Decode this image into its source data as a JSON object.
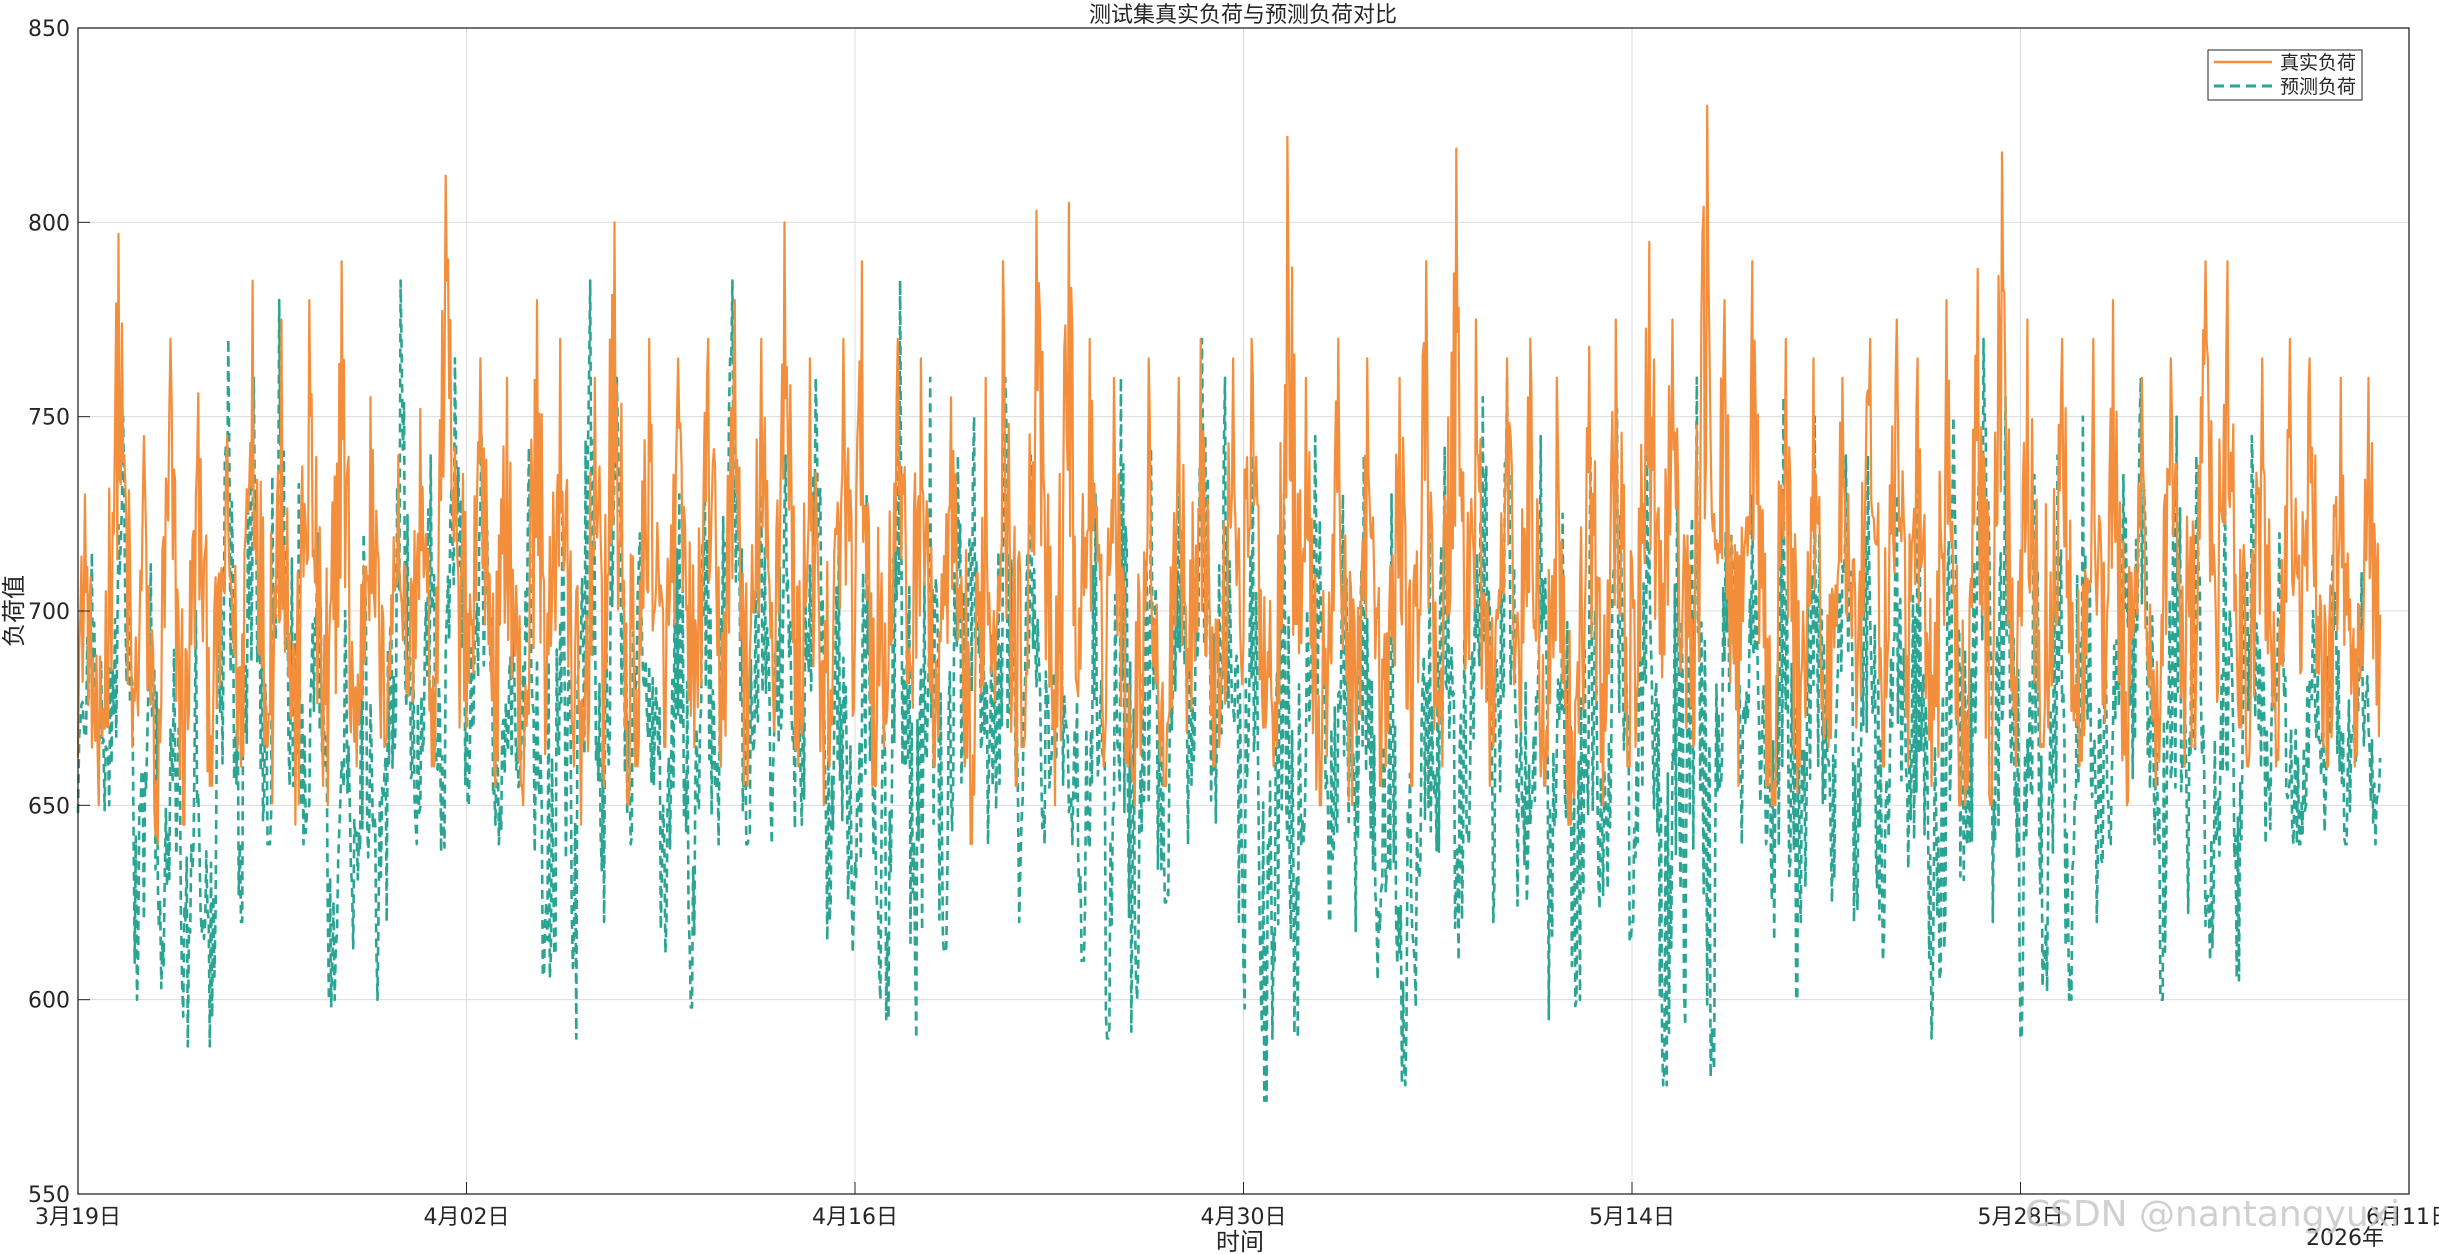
{
  "chart_data": {
    "type": "line",
    "title": "测试集真实负荷与预测负荷对比",
    "xlabel": "时间",
    "ylabel": "负荷值",
    "x_year_label": "2026年",
    "x_range": [
      "2026-03-19",
      "2026-06-11"
    ],
    "ylim": [
      550,
      850
    ],
    "y_ticks": [
      550,
      600,
      650,
      700,
      750,
      800,
      850
    ],
    "x_ticks": [
      {
        "date": "2026-03-19",
        "label": "3月19日"
      },
      {
        "date": "2026-04-02",
        "label": "4月02日"
      },
      {
        "date": "2026-04-16",
        "label": "4月16日"
      },
      {
        "date": "2026-04-30",
        "label": "4月30日"
      },
      {
        "date": "2026-05-14",
        "label": "5月14日"
      },
      {
        "date": "2026-05-28",
        "label": "5月28日"
      },
      {
        "date": "2026-06-11",
        "label": "6月11日"
      }
    ],
    "grid": true,
    "legend_position": "top-right",
    "data_start": "2026-03-19",
    "data_end": "2026-06-10",
    "series": [
      {
        "name": "真实负荷",
        "color": "#F28E3C",
        "style": "solid",
        "daily_min": [
          650,
          665,
          640,
          645,
          655,
          660,
          665,
          645,
          655,
          650,
          660,
          665,
          660,
          670,
          670,
          655,
          650,
          660,
          645,
          650,
          660,
          665,
          665,
          660,
          655,
          660,
          650,
          660,
          655,
          665,
          660,
          660,
          640,
          655,
          665,
          650,
          660,
          660,
          650,
          655,
          660,
          665,
          670,
          660,
          650,
          650,
          655,
          660,
          655,
          660,
          655,
          665,
          655,
          645,
          650,
          660,
          665,
          670,
          665,
          655,
          655,
          650,
          660,
          665,
          670,
          660,
          655,
          650,
          650,
          660,
          665,
          670,
          660,
          650,
          655,
          660,
          665,
          670,
          660,
          660,
          665,
          660,
          660
        ],
        "daily_max": [
          730,
          797,
          745,
          770,
          756,
          745,
          785,
          775,
          780,
          790,
          755,
          740,
          752,
          812,
          765,
          760,
          780,
          770,
          760,
          800,
          770,
          765,
          770,
          780,
          770,
          800,
          765,
          770,
          790,
          770,
          765,
          755,
          760,
          790,
          803,
          805,
          770,
          760,
          765,
          760,
          770,
          765,
          770,
          822,
          760,
          770,
          765,
          760,
          790,
          819,
          775,
          765,
          770,
          760,
          768,
          775,
          795,
          775,
          830,
          780,
          790,
          770,
          765,
          760,
          770,
          775,
          765,
          780,
          788,
          818,
          775,
          770,
          770,
          780,
          760,
          765,
          790,
          790,
          765,
          770,
          765,
          760,
          760
        ]
      },
      {
        "name": "预测负荷",
        "color": "#2AA594",
        "style": "dashed",
        "daily_min": [
          648,
          650,
          600,
          588,
          588,
          620,
          640,
          655,
          640,
          598,
          600,
          620,
          640,
          638,
          650,
          640,
          606,
          590,
          620,
          640,
          655,
          612,
          598,
          640,
          640,
          640,
          645,
          612,
          600,
          595,
          590,
          612,
          640,
          620,
          640,
          640,
          610,
          590,
          600,
          625,
          640,
          620,
          574,
          590,
          640,
          620,
          605,
          578,
          598,
          610,
          640,
          620,
          625,
          595,
          600,
          615,
          620,
          578,
          580,
          640,
          640,
          600,
          620,
          625,
          620,
          610,
          590,
          605,
          640,
          620,
          590,
          600,
          620,
          640,
          640,
          600,
          610,
          605,
          640,
          640,
          640,
          640,
          640
        ],
        "daily_max": [
          715,
          750,
          712,
          690,
          700,
          770,
          760,
          780,
          720,
          700,
          720,
          785,
          740,
          765,
          745,
          700,
          742,
          725,
          785,
          760,
          720,
          730,
          745,
          785,
          730,
          740,
          760,
          720,
          730,
          785,
          760,
          740,
          750,
          760,
          740,
          700,
          730,
          760,
          742,
          755,
          770,
          760,
          740,
          730,
          745,
          730,
          740,
          730,
          720,
          742,
          755,
          760,
          745,
          725,
          740,
          752,
          740,
          730,
          760,
          740,
          730,
          755,
          750,
          740,
          740,
          730,
          745,
          750,
          770,
          755,
          735,
          740,
          750,
          735,
          760,
          750,
          740,
          730,
          745,
          720,
          700,
          715,
          710
        ]
      }
    ]
  },
  "watermark": "CSDN @nantangyuxi"
}
